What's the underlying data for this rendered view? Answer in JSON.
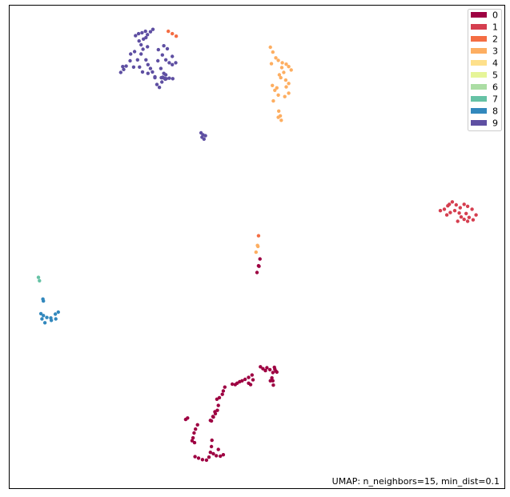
{
  "chart_data": {
    "type": "scatter",
    "title": "",
    "xlabel": "",
    "ylabel": "",
    "annotation": "UMAP: n_neighbors=15, min_dist=0.1",
    "grid": false,
    "axes_ticks": false,
    "legend": {
      "placement": "top-right",
      "entries": [
        "0",
        "1",
        "2",
        "3",
        "4",
        "5",
        "6",
        "7",
        "8",
        "9"
      ]
    },
    "colors": [
      "#9e0142",
      "#d53e4f",
      "#f46d43",
      "#fdae61",
      "#fee08b",
      "#e6f598",
      "#abdda4",
      "#66c2a5",
      "#3288bd",
      "#5e4fa2"
    ],
    "xlim": [
      0,
      100
    ],
    "ylim": [
      0,
      100
    ],
    "series": [
      {
        "name": "0",
        "points": [
          [
            53.0,
            77.1
          ],
          [
            53.2,
            77.7
          ],
          [
            53.3,
            78.6
          ],
          [
            52.7,
            77.7
          ],
          [
            50.7,
            74.8
          ],
          [
            51.2,
            75.2
          ],
          [
            52.6,
            75.4
          ],
          [
            53.5,
            74.9
          ],
          [
            54.0,
            75.9
          ],
          [
            53.2,
            76.0
          ],
          [
            53.6,
            75.3
          ],
          [
            52.0,
            75.0
          ],
          [
            53.8,
            75.7
          ],
          [
            51.7,
            75.6
          ],
          [
            49.0,
            76.5
          ],
          [
            48.3,
            77.0
          ],
          [
            47.6,
            77.4
          ],
          [
            47.0,
            77.7
          ],
          [
            46.5,
            77.9
          ],
          [
            46.0,
            78.2
          ],
          [
            45.6,
            78.5
          ],
          [
            45.0,
            78.4
          ],
          [
            49.2,
            77.5
          ],
          [
            48.7,
            78.5
          ],
          [
            48.3,
            78.2
          ],
          [
            43.5,
            79.0
          ],
          [
            43.2,
            79.8
          ],
          [
            43.0,
            80.5
          ],
          [
            42.4,
            81.2
          ],
          [
            41.9,
            81.5
          ],
          [
            42.2,
            82.8
          ],
          [
            42.0,
            83.8
          ],
          [
            41.6,
            84.5
          ],
          [
            41.2,
            85.2
          ],
          [
            40.8,
            86.0
          ],
          [
            41.5,
            84.1
          ],
          [
            41.1,
            85.1
          ],
          [
            40.6,
            85.9
          ],
          [
            38.0,
            86.8
          ],
          [
            37.6,
            87.7
          ],
          [
            37.3,
            88.5
          ],
          [
            37.1,
            89.5
          ],
          [
            36.9,
            90.1
          ],
          [
            37.4,
            90.5
          ],
          [
            36.0,
            85.4
          ],
          [
            35.6,
            85.7
          ],
          [
            37.5,
            93.4
          ],
          [
            38.2,
            93.7
          ],
          [
            39.0,
            94.0
          ],
          [
            39.8,
            94.1
          ],
          [
            40.3,
            93.5
          ],
          [
            40.6,
            92.5
          ],
          [
            41.2,
            92.8
          ],
          [
            41.8,
            93.2
          ],
          [
            42.6,
            93.3
          ],
          [
            43.2,
            93.0
          ],
          [
            40.8,
            91.3
          ],
          [
            40.9,
            90.0
          ],
          [
            42.2,
            91.9
          ],
          [
            50.6,
            52.5
          ],
          [
            50.3,
            53.9
          ],
          [
            50.0,
            55.3
          ],
          [
            50.4,
            54.0
          ]
        ]
      },
      {
        "name": "1",
        "points": [
          [
            87.0,
            42.5
          ],
          [
            87.8,
            42.2
          ],
          [
            88.5,
            41.5
          ],
          [
            89.4,
            40.7
          ],
          [
            90.2,
            41.3
          ],
          [
            91.0,
            41.9
          ],
          [
            91.8,
            41.2
          ],
          [
            92.5,
            41.6
          ],
          [
            93.4,
            42.2
          ],
          [
            94.2,
            43.4
          ],
          [
            93.6,
            44.4
          ],
          [
            92.8,
            43.9
          ],
          [
            91.8,
            44.3
          ],
          [
            90.8,
            43.0
          ],
          [
            89.9,
            42.5
          ],
          [
            89.0,
            42.9
          ],
          [
            88.3,
            43.4
          ],
          [
            92.2,
            43.1
          ],
          [
            90.5,
            44.7
          ],
          [
            92.5,
            44.7
          ],
          [
            91.2,
            43.8
          ],
          [
            88.8,
            41.2
          ]
        ]
      },
      {
        "name": "2",
        "points": [
          [
            32.1,
            5.4
          ],
          [
            32.9,
            5.9
          ],
          [
            33.7,
            6.4
          ],
          [
            50.3,
            47.7
          ]
        ]
      },
      {
        "name": "3",
        "points": [
          [
            52.7,
            8.7
          ],
          [
            53.2,
            9.7
          ],
          [
            53.8,
            10.9
          ],
          [
            54.3,
            11.4
          ],
          [
            55.1,
            11.9
          ],
          [
            55.9,
            12.2
          ],
          [
            56.4,
            12.7
          ],
          [
            56.9,
            13.4
          ],
          [
            55.4,
            13.9
          ],
          [
            54.5,
            14.4
          ],
          [
            54.8,
            15.0
          ],
          [
            55.8,
            15.5
          ],
          [
            56.4,
            16.2
          ],
          [
            55.9,
            16.9
          ],
          [
            56.4,
            18.2
          ],
          [
            55.6,
            18.9
          ],
          [
            54.3,
            18.6
          ],
          [
            53.6,
            17.6
          ],
          [
            53.1,
            16.6
          ],
          [
            54.0,
            17.1
          ],
          [
            53.3,
            19.8
          ],
          [
            55.0,
            12.9
          ],
          [
            52.9,
            12.1
          ],
          [
            54.4,
            21.9
          ],
          [
            54.7,
            22.9
          ],
          [
            54.9,
            23.8
          ],
          [
            54.3,
            23.2
          ],
          [
            50.2,
            49.9
          ],
          [
            49.8,
            51.1
          ],
          [
            50.1,
            49.7
          ]
        ]
      },
      {
        "name": "7",
        "points": [
          [
            5.9,
            56.3
          ],
          [
            6.1,
            57.0
          ]
        ]
      },
      {
        "name": "8",
        "points": [
          [
            6.8,
            60.8
          ],
          [
            6.9,
            61.2
          ],
          [
            6.4,
            63.8
          ],
          [
            6.9,
            64.2
          ],
          [
            7.6,
            64.6
          ],
          [
            8.5,
            65.2
          ],
          [
            9.4,
            64.9
          ],
          [
            9.9,
            63.5
          ],
          [
            9.3,
            63.9
          ],
          [
            8.4,
            64.7
          ],
          [
            7.2,
            65.7
          ],
          [
            6.6,
            64.9
          ]
        ]
      },
      {
        "name": "9",
        "points": [
          [
            25.5,
            6.3
          ],
          [
            26.1,
            5.9
          ],
          [
            26.8,
            5.7
          ],
          [
            27.5,
            5.4
          ],
          [
            27.9,
            6.1
          ],
          [
            27.6,
            6.7
          ],
          [
            28.5,
            5.5
          ],
          [
            29.0,
            5.0
          ],
          [
            27.1,
            7.0
          ],
          [
            27.9,
            8.6
          ],
          [
            26.2,
            7.4
          ],
          [
            26.6,
            8.2
          ],
          [
            25.3,
            9.6
          ],
          [
            24.5,
            10.1
          ],
          [
            24.4,
            11.5
          ],
          [
            25.1,
            12.8
          ],
          [
            25.9,
            11.3
          ],
          [
            26.6,
            10.1
          ],
          [
            27.0,
            9.1
          ],
          [
            27.6,
            11.3
          ],
          [
            28.0,
            12.3
          ],
          [
            28.5,
            13.1
          ],
          [
            28.9,
            13.8
          ],
          [
            28.0,
            14.1
          ],
          [
            26.9,
            13.8
          ],
          [
            26.3,
            12.8
          ],
          [
            23.6,
            12.6
          ],
          [
            23.1,
            13.3
          ],
          [
            22.5,
            13.9
          ],
          [
            22.9,
            12.7
          ],
          [
            30.6,
            13.1
          ],
          [
            31.2,
            14.1
          ],
          [
            31.0,
            14.9
          ],
          [
            30.8,
            15.9
          ],
          [
            31.6,
            14.4
          ],
          [
            30.0,
            11.5
          ],
          [
            29.4,
            15.0
          ],
          [
            29.8,
            16.4
          ],
          [
            30.3,
            17.0
          ],
          [
            30.1,
            9.2
          ],
          [
            30.9,
            10.3
          ],
          [
            31.6,
            11.3
          ],
          [
            32.3,
            11.9
          ],
          [
            32.9,
            12.3
          ],
          [
            33.6,
            11.9
          ],
          [
            32.9,
            10.6
          ],
          [
            31.9,
            9.0
          ],
          [
            31.2,
            8.4
          ],
          [
            30.7,
            15.0
          ],
          [
            31.3,
            15.1
          ],
          [
            29.4,
            14.8
          ],
          [
            30.8,
            15.0
          ],
          [
            31.7,
            15.2
          ],
          [
            32.3,
            15.1
          ],
          [
            33.0,
            15.2
          ],
          [
            31.5,
            15.3
          ],
          [
            38.7,
            26.4
          ],
          [
            39.1,
            26.8
          ],
          [
            39.6,
            27.0
          ],
          [
            38.9,
            27.3
          ],
          [
            39.3,
            27.7
          ]
        ]
      }
    ]
  }
}
